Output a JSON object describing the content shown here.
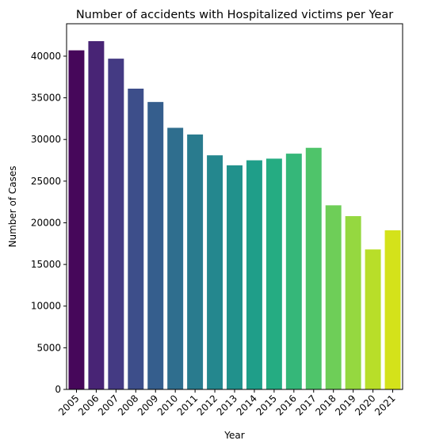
{
  "chart_data": {
    "type": "bar",
    "title": "Number of accidents with Hospitalized victims per Year",
    "xlabel": "Year",
    "ylabel": "Number of Cases",
    "categories": [
      "2005",
      "2006",
      "2007",
      "2008",
      "2009",
      "2010",
      "2011",
      "2012",
      "2013",
      "2014",
      "2015",
      "2016",
      "2017",
      "2018",
      "2019",
      "2020",
      "2021"
    ],
    "values": [
      40700,
      41800,
      39700,
      36100,
      34500,
      31400,
      30600,
      28100,
      26900,
      27500,
      27700,
      28300,
      29000,
      22100,
      20800,
      16800,
      19100
    ],
    "colors": [
      "#46075a",
      "#482475",
      "#443a83",
      "#3d4e8a",
      "#355e8d",
      "#2f6e8e",
      "#297b8e",
      "#24878e",
      "#21918c",
      "#1f9e89",
      "#25ac82",
      "#35b779",
      "#4fc46a",
      "#6ece58",
      "#95d840",
      "#b8de29",
      "#d4e21a"
    ],
    "yticks": [
      0,
      5000,
      10000,
      15000,
      20000,
      25000,
      30000,
      35000,
      40000
    ],
    "ylim": [
      0,
      43890
    ],
    "grid": false,
    "legend": "none"
  }
}
